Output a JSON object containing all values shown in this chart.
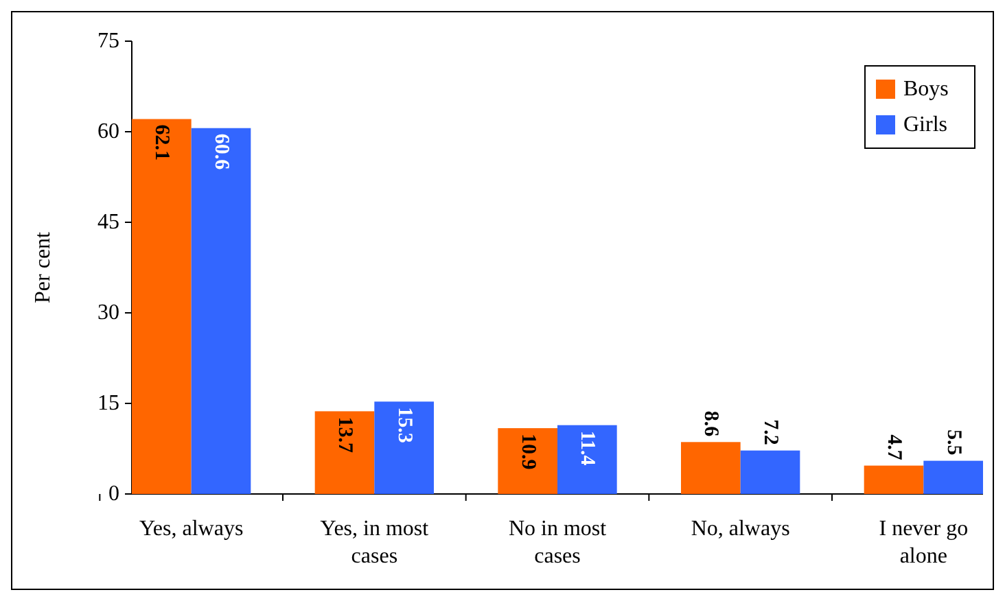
{
  "chart_data": {
    "type": "bar",
    "ylabel": "Per cent",
    "categories": [
      "Yes, always",
      "Yes, in most cases",
      "No in most cases",
      "No, always",
      "I never go alone"
    ],
    "series": [
      {
        "name": "Boys",
        "color": "#ff6600",
        "values": [
          62.1,
          13.7,
          10.9,
          8.6,
          4.7
        ]
      },
      {
        "name": "Girls",
        "color": "#3366ff",
        "values": [
          60.6,
          15.3,
          11.4,
          7.2,
          5.5
        ]
      }
    ],
    "ylim": [
      0,
      75
    ],
    "yticks": [
      0,
      15,
      30,
      45,
      60,
      75
    ],
    "data_labels": true,
    "legend": "top right"
  }
}
